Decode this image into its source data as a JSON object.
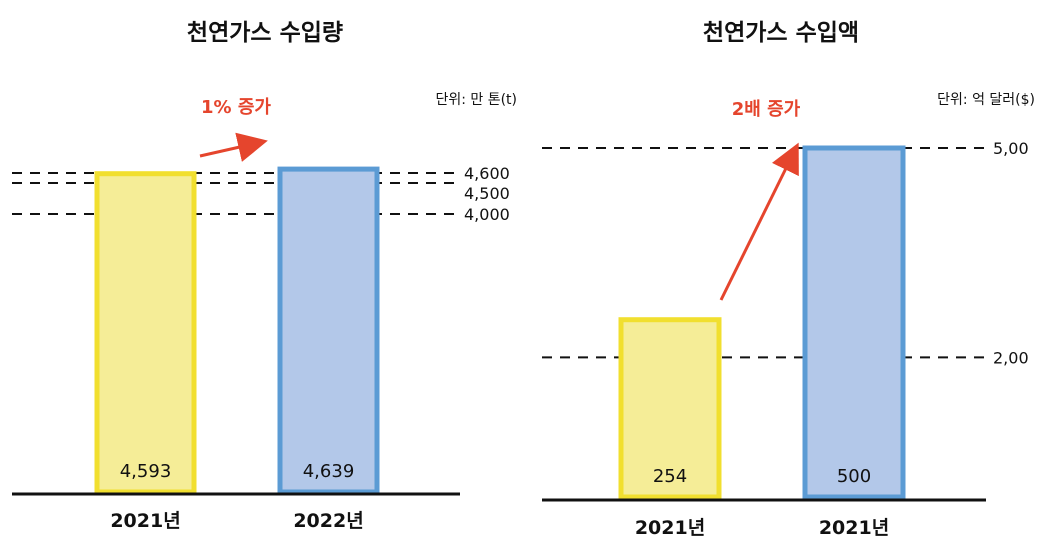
{
  "colors": {
    "yellow_fill": "#f5ed97",
    "yellow_stroke": "#f1df2f",
    "blue_fill": "#b3c8e9",
    "blue_stroke": "#5b9bd4",
    "arrow": "#e5452d",
    "line": "#111111"
  },
  "chart_data": [
    {
      "type": "bar",
      "title": "천연가스 수입량",
      "unit_label": "단위: 만 톤(t)",
      "categories": [
        "2021년",
        "2022년"
      ],
      "values": [
        4593,
        4639
      ],
      "value_labels": [
        "4,593",
        "4,639"
      ],
      "bar_colors": [
        "yellow",
        "blue"
      ],
      "reference_lines": [
        {
          "value": 4600,
          "label": "4,600"
        },
        {
          "value": 4500,
          "label": "4,500"
        },
        {
          "value": 4000,
          "label": "4,000"
        }
      ],
      "annotation": "1% 증가"
    },
    {
      "type": "bar",
      "title": "천연가스 수입액",
      "unit_label": "단위: 억 달러($)",
      "categories": [
        "2021년",
        "2021년"
      ],
      "values": [
        254,
        500
      ],
      "value_labels": [
        "254",
        "500"
      ],
      "bar_colors": [
        "yellow",
        "blue"
      ],
      "reference_lines": [
        {
          "value": 500,
          "label": "5,00"
        },
        {
          "value": 200,
          "label": "2,00"
        }
      ],
      "annotation": "2배 증가"
    }
  ]
}
